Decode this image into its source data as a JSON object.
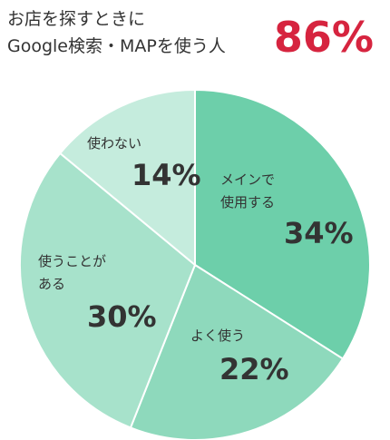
{
  "chart_data": {
    "type": "pie",
    "title": "お店を探すときに\nGoogle検索・MAPを使う人",
    "highlight": {
      "value": 86,
      "label": "86%"
    },
    "categories": [
      "メインで\n使用する",
      "よく使う",
      "使うことが\nある",
      "使わない"
    ],
    "values": [
      34,
      22,
      30,
      14
    ],
    "value_labels": [
      "34%",
      "22%",
      "30%",
      "14%"
    ],
    "colors": [
      "#6dcfaa",
      "#8ed9bc",
      "#a7e2cb",
      "#c5ecdd"
    ]
  }
}
